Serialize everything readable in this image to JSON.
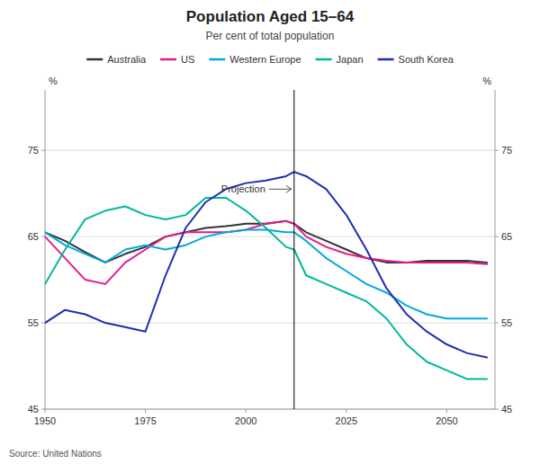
{
  "chart_data": {
    "type": "line",
    "title": "Population Aged 15–64",
    "subtitle": "Per cent of total population",
    "source": "Source: United Nations",
    "y_label": "%",
    "y2_label": "%",
    "x": [
      1950,
      1955,
      1960,
      1965,
      1970,
      1975,
      1980,
      1985,
      1990,
      1995,
      2000,
      2005,
      2010,
      2012,
      2015,
      2020,
      2025,
      2030,
      2035,
      2040,
      2045,
      2050,
      2055,
      2060
    ],
    "xlim": [
      1950,
      2062
    ],
    "xticks": [
      1950,
      1975,
      2000,
      2025,
      2050
    ],
    "ylim": [
      45,
      82
    ],
    "yticks": [
      45,
      55,
      65,
      75
    ],
    "y2lim": [
      45,
      82
    ],
    "y2ticks": [
      45,
      55,
      65,
      75
    ],
    "grid": true,
    "annotations": [
      {
        "text": "Projection",
        "x": 2012,
        "y": 70.5
      }
    ],
    "series": [
      {
        "name": "Australia",
        "color": "#333333",
        "values": [
          65.5,
          64.5,
          63.2,
          62.0,
          63.0,
          63.8,
          65.0,
          65.5,
          66.0,
          66.2,
          66.5,
          66.5,
          66.8,
          66.5,
          65.5,
          64.5,
          63.5,
          62.5,
          62.0,
          62.0,
          62.2,
          62.2,
          62.2,
          62.0
        ]
      },
      {
        "name": "US",
        "color": "#e8198b",
        "values": [
          65.0,
          62.5,
          60.0,
          59.5,
          62.0,
          63.5,
          65.0,
          65.5,
          65.5,
          65.5,
          65.8,
          66.5,
          66.8,
          66.5,
          65.0,
          63.8,
          63.0,
          62.5,
          62.2,
          62.0,
          62.0,
          62.0,
          62.0,
          61.8
        ]
      },
      {
        "name": "Western Europe",
        "color": "#00a8e0",
        "values": [
          65.5,
          64.0,
          63.0,
          62.0,
          63.5,
          64.0,
          63.5,
          64.0,
          65.0,
          65.5,
          65.8,
          65.8,
          65.5,
          65.5,
          64.5,
          62.5,
          61.0,
          59.5,
          58.5,
          57.0,
          56.0,
          55.5,
          55.5,
          55.5
        ]
      },
      {
        "name": "Japan",
        "color": "#00b89c",
        "values": [
          59.5,
          63.5,
          67.0,
          68.0,
          68.5,
          67.5,
          67.0,
          67.5,
          69.5,
          69.5,
          68.0,
          66.0,
          63.8,
          63.5,
          60.5,
          59.5,
          58.5,
          57.5,
          55.5,
          52.5,
          50.5,
          49.5,
          48.5,
          48.5
        ]
      },
      {
        "name": "South Korea",
        "color": "#1f2eb0",
        "values": [
          55.0,
          56.5,
          56.0,
          55.0,
          54.5,
          54.0,
          60.5,
          66.0,
          69.0,
          70.5,
          71.2,
          71.5,
          72.0,
          72.5,
          72.0,
          70.5,
          67.5,
          63.5,
          59.0,
          56.0,
          54.0,
          52.5,
          51.5,
          51.0
        ]
      }
    ]
  }
}
